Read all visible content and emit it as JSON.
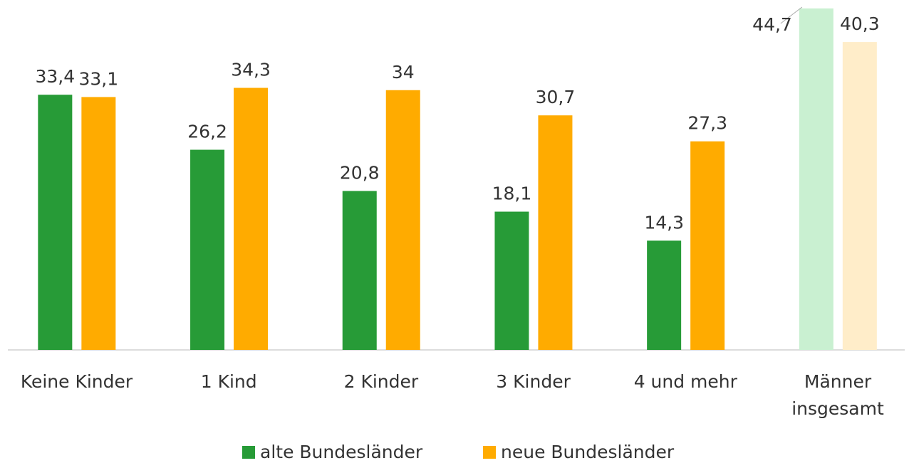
{
  "chart_data": {
    "type": "bar",
    "categories": [
      "Keine Kinder",
      "1 Kind",
      "2 Kinder",
      "3 Kinder",
      "4 und mehr",
      "Männer\ninsgesamt"
    ],
    "series": [
      {
        "name": "alte Bundesländer",
        "color": "#279b37",
        "colors": [
          "#279b37",
          "#279b37",
          "#279b37",
          "#279b37",
          "#279b37",
          "#c9f0d1"
        ],
        "values": [
          33.4,
          26.2,
          20.8,
          18.1,
          14.3,
          44.7
        ],
        "value_labels": [
          "33,4",
          "26,2",
          "20,8",
          "18,1",
          "14,3",
          "44,7"
        ]
      },
      {
        "name": "neue Bundesländer",
        "color": "#ffab00",
        "colors": [
          "#ffab00",
          "#ffab00",
          "#ffab00",
          "#ffab00",
          "#ffab00",
          "#ffedc9"
        ],
        "values": [
          33.1,
          34.3,
          34,
          30.7,
          27.3,
          40.3
        ],
        "value_labels": [
          "33,1",
          "34,3",
          "34",
          "30,7",
          "27,3",
          "40,3"
        ]
      }
    ],
    "ylim": [
      0,
      45.8
    ],
    "legend": "bottom"
  }
}
